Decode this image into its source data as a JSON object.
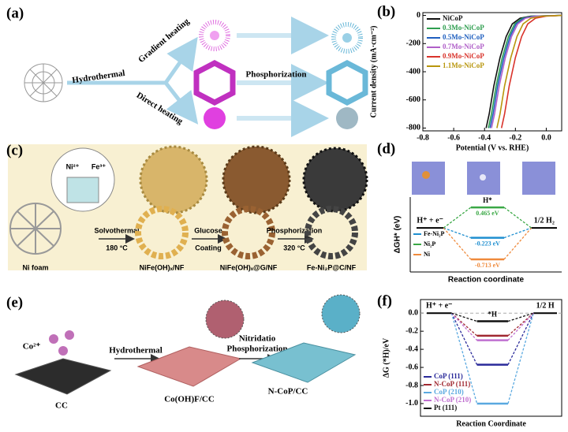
{
  "panels": {
    "a": {
      "label": "(a)",
      "step1": "Hydrothermal",
      "upper": "Gradient heating",
      "lower": "Direct heating",
      "step2": "Phosphorization"
    },
    "c": {
      "label": "(c)",
      "ions1": "Ni²⁺",
      "ions2": "Fe³⁺",
      "start": "Ni foam",
      "step1": "Solvothermal",
      "temp1": "180 °C",
      "mid1": "NiFe(OH)ₓ/NF",
      "step2a": "Glucose",
      "step2b": "Coating",
      "mid2": "NiFe(OH)ₓ@G/NF",
      "step3": "Phosphorization",
      "temp3": "320 °C",
      "end": "Fe-Ni₂P@C/NF"
    },
    "e": {
      "label": "(e)",
      "ions": "Co²⁺",
      "step1": "Hydrothermal",
      "start": "CC",
      "mid": "Co(OH)F/CC",
      "step2a": "Nitridatio",
      "step2b": "Phosphorization",
      "end": "N-CoP/CC"
    }
  },
  "chart_data": [
    {
      "type": "line",
      "panel_label": "(b)",
      "x_label": "Potential (V vs. RHE)",
      "y_label": "Current density (mA·cm⁻²)",
      "xlim": [
        -0.8,
        0.1
      ],
      "xticks": [
        -0.8,
        -0.6,
        -0.4,
        -0.2,
        {
          "value": 0,
          "label": "0.0"
        }
      ],
      "ylim": [
        -820,
        20
      ],
      "yticks": [
        0,
        -200,
        -400,
        -600,
        -800
      ],
      "legend": "upper-left",
      "series": [
        {
          "name": "NiCoP",
          "color": "#111111",
          "x": [
            0.1,
            -0.1,
            -0.17,
            -0.22,
            -0.26,
            -0.3,
            -0.34,
            -0.37,
            -0.39
          ],
          "values": [
            0,
            -5,
            -20,
            -60,
            -150,
            -300,
            -500,
            -700,
            -800
          ]
        },
        {
          "name": "0.3Mo-NiCoP",
          "color": "#2e9e4f",
          "x": [
            0.1,
            -0.085,
            -0.155,
            -0.205,
            -0.245,
            -0.285,
            -0.325,
            -0.355,
            -0.375
          ],
          "values": [
            0,
            -5,
            -20,
            -60,
            -150,
            -300,
            -500,
            -700,
            -800
          ]
        },
        {
          "name": "0.5Mo-NiCoP",
          "color": "#1f5fbf",
          "x": [
            0.1,
            -0.075,
            -0.145,
            -0.195,
            -0.235,
            -0.275,
            -0.315,
            -0.345,
            -0.365
          ],
          "values": [
            0,
            -5,
            -20,
            -60,
            -150,
            -300,
            -500,
            -700,
            -800
          ]
        },
        {
          "name": "0.7Mo-NiCoP",
          "color": "#b05fc8",
          "x": [
            0.1,
            -0.065,
            -0.135,
            -0.185,
            -0.225,
            -0.265,
            -0.305,
            -0.335,
            -0.355
          ],
          "values": [
            0,
            -5,
            -20,
            -60,
            -150,
            -300,
            -500,
            -700,
            -800
          ]
        },
        {
          "name": "0.9Mo-NiCoP",
          "color": "#d9332b",
          "x": [
            0.1,
            0,
            -0.07,
            -0.12,
            -0.16,
            -0.2,
            -0.24,
            -0.27,
            -0.29
          ],
          "values": [
            0,
            -5,
            -20,
            -60,
            -150,
            -300,
            -500,
            -700,
            -800
          ]
        },
        {
          "name": "1.1Mo-NiCoP",
          "color": "#b8960c",
          "x": [
            0.1,
            -0.03,
            -0.1,
            -0.15,
            -0.19,
            -0.23,
            -0.27,
            -0.3,
            -0.32
          ],
          "values": [
            0,
            -5,
            -20,
            -60,
            -150,
            -300,
            -500,
            -700,
            -800
          ]
        }
      ]
    },
    {
      "type": "energy",
      "panel_label": "(d)",
      "x_label": "Reaction coordinate",
      "y_label": "ΔGH* (eV)",
      "start_label": "H⁺ + e⁻",
      "middle_label": "H*",
      "end_label": "1/2 H₂",
      "ylim": [
        -1.0,
        0.7
      ],
      "legend": "lower-left",
      "series": [
        {
          "name": "Fe-Ni₂P",
          "color": "#1f8fd0",
          "values": [
            -0.223
          ],
          "value_labels": [
            "-0.223 eV"
          ]
        },
        {
          "name": "Ni₂P",
          "color": "#3aa845",
          "values": [
            0.465
          ],
          "value_labels": [
            "0.465 eV"
          ]
        },
        {
          "name": "Ni",
          "color": "#ef8a3c",
          "values": [
            -0.713
          ],
          "value_labels": [
            "-0.713 eV"
          ]
        }
      ]
    },
    {
      "type": "energy",
      "panel_label": "(f)",
      "x_label": "Reaction Coordinate",
      "y_label": "ΔG (*H)/eV",
      "start_label": "H⁺ + e⁻",
      "middle_label": "*H",
      "end_label": "1/2 H",
      "ylim": [
        -1.14,
        0.15
      ],
      "yticks": [
        {
          "value": 0,
          "label": "0.0"
        },
        -0.2,
        -0.4,
        -0.6,
        -0.8,
        {
          "value": -1,
          "label": "-1.0"
        }
      ],
      "legend": "lower-left",
      "series": [
        {
          "name": "CoP (111)",
          "color": "#2a2a9a",
          "values": [
            -0.57
          ]
        },
        {
          "name": "N-CoP (111)",
          "color": "#a02830",
          "values": [
            -0.25
          ]
        },
        {
          "name": "CoP (210)",
          "color": "#5aa9e0",
          "values": [
            -1.0
          ]
        },
        {
          "name": "N-CoP (210)",
          "color": "#c070d0",
          "values": [
            -0.3
          ]
        },
        {
          "name": "Pt (111)",
          "color": "#111111",
          "values": [
            -0.09
          ]
        }
      ]
    }
  ]
}
